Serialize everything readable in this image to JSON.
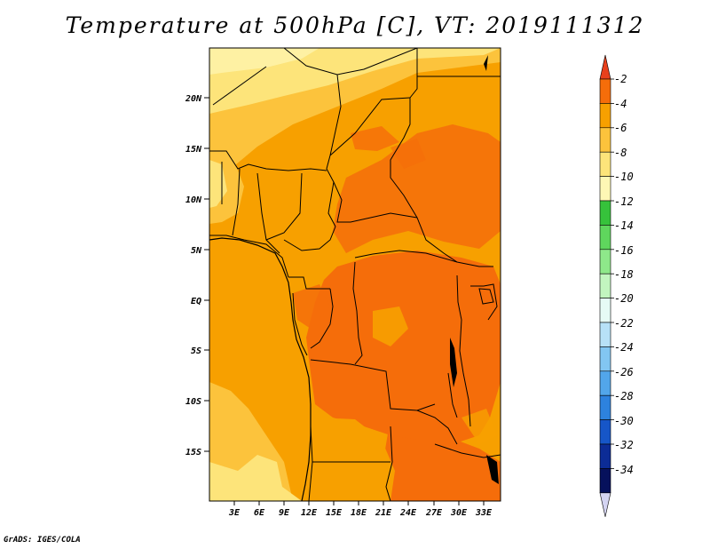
{
  "title": "Temperature at 500hPa [C], VT: 2019111312",
  "credit": "GrADS: IGES/COLA",
  "map": {
    "lat_ticks": [
      "20N",
      "15N",
      "10N",
      "5N",
      "EQ",
      "5S",
      "10S",
      "15S"
    ],
    "lon_ticks": [
      "3E",
      "6E",
      "9E",
      "12E",
      "15E",
      "18E",
      "21E",
      "24E",
      "27E",
      "30E",
      "33E"
    ]
  },
  "legend": {
    "labels": [
      "-2",
      "-4",
      "-6",
      "-8",
      "-10",
      "-12",
      "-14",
      "-16",
      "-18",
      "-20",
      "-22",
      "-24",
      "-26",
      "-28",
      "-30",
      "-32",
      "-34"
    ],
    "colors": [
      "#e8401c",
      "#f56d0a",
      "#f7a000",
      "#fcc33c",
      "#fde47a",
      "#fef7b5",
      "#36c23b",
      "#5fd65d",
      "#8ee88a",
      "#c2f5bf",
      "#e6fbf5",
      "#b7e1f7",
      "#82c6f2",
      "#52a6ea",
      "#2d82de",
      "#1656c8",
      "#0c2c96",
      "#06115c",
      "#d4d4f2"
    ]
  }
}
